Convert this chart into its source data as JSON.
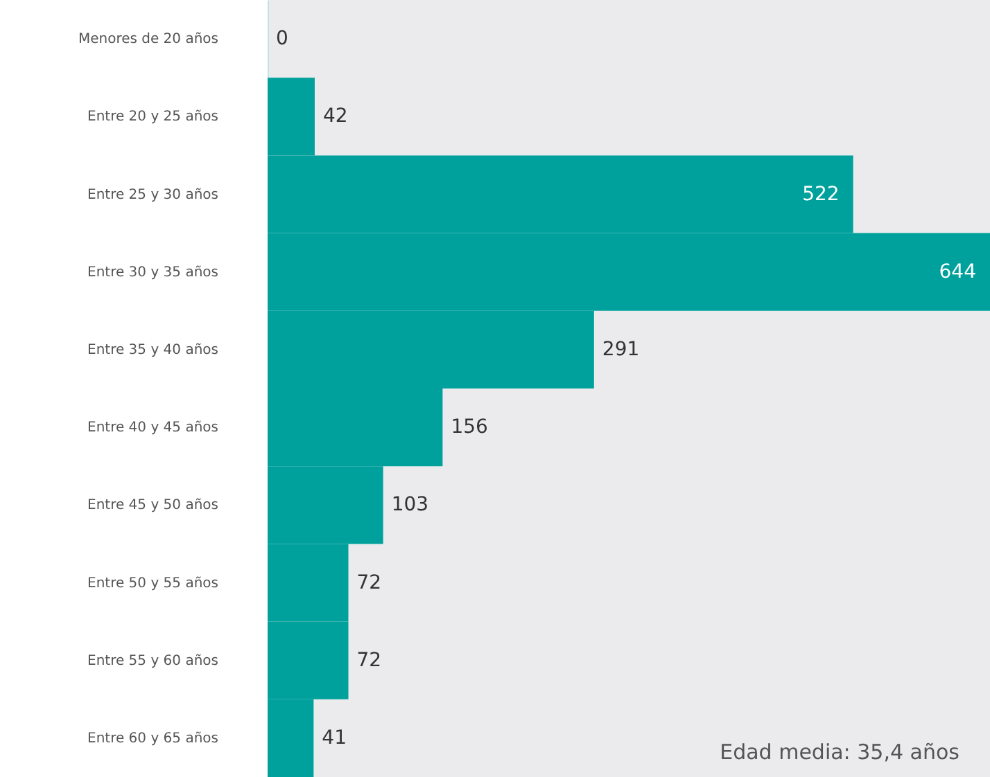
{
  "chart_data": {
    "type": "bar",
    "orientation": "horizontal",
    "categories": [
      "Menores de 20 años",
      "Entre 20 y 25 años",
      "Entre 25 y 30 años",
      "Entre 30 y 35 años",
      "Entre 35 y 40 años",
      "Entre 40 y 45 años",
      "Entre 45 y 50 años",
      "Entre 50 y 55 años",
      "Entre 55 y 60 años",
      "Entre 60 y 65 años"
    ],
    "values": [
      0,
      42,
      522,
      644,
      291,
      156,
      103,
      72,
      72,
      41
    ],
    "color": "#00a19d",
    "data_labels": true,
    "annotations": [
      "Edad media: 35,4 años"
    ]
  }
}
